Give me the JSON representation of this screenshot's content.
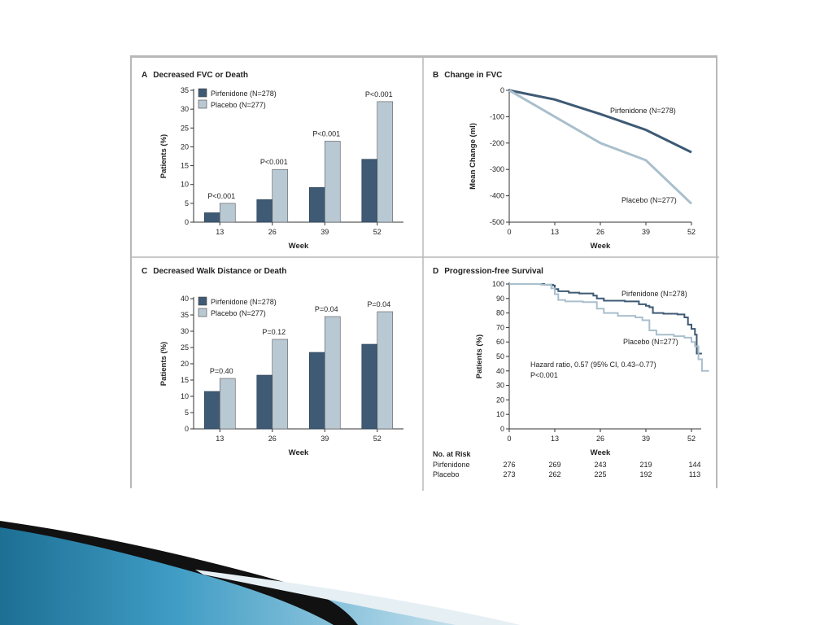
{
  "colors": {
    "pirf": "#3e5a74",
    "placebo": "#b9c9d4",
    "placebo_line": "#a9bfcc",
    "axis": "#333333",
    "frame": "#b8b8b8"
  },
  "chart_data": [
    {
      "letter": "A",
      "title": "Decreased FVC or Death",
      "type": "bar",
      "categories": [
        "13",
        "26",
        "39",
        "52"
      ],
      "series": [
        {
          "name": "Pirfenidone (N=278)",
          "values": [
            2.5,
            6.0,
            9.2,
            16.7
          ]
        },
        {
          "name": "Placebo (N=277)",
          "values": [
            5.0,
            14.0,
            21.5,
            32.0
          ]
        }
      ],
      "pvalues": [
        "P<0.001",
        "P<0.001",
        "P<0.001",
        "P<0.001"
      ],
      "ylim": [
        0,
        35
      ],
      "yticks": [
        0,
        5,
        10,
        15,
        20,
        25,
        30,
        35
      ],
      "xlabel": "Week",
      "ylabel": "Patients (%)",
      "legend": "top-left"
    },
    {
      "letter": "B",
      "title": "Change in FVC",
      "type": "line",
      "x": [
        0,
        13,
        26,
        39,
        52
      ],
      "series": [
        {
          "name": "Pirfenidone (N=278)",
          "values": [
            0,
            -35,
            -90,
            -150,
            -235
          ]
        },
        {
          "name": "Placebo (N=277)",
          "values": [
            0,
            -100,
            -200,
            -265,
            -430
          ]
        }
      ],
      "ylim": [
        -500,
        0
      ],
      "yticks": [
        0,
        -100,
        -200,
        -300,
        -400,
        -500
      ],
      "xticks": [
        0,
        13,
        26,
        39,
        52
      ],
      "xlabel": "Week",
      "ylabel": "Mean Change (ml)"
    },
    {
      "letter": "C",
      "title": "Decreased Walk Distance or Death",
      "type": "bar",
      "categories": [
        "13",
        "26",
        "39",
        "52"
      ],
      "series": [
        {
          "name": "Pirfenidone (N=278)",
          "values": [
            11.5,
            16.5,
            23.5,
            26.0
          ]
        },
        {
          "name": "Placebo (N=277)",
          "values": [
            15.5,
            27.5,
            34.5,
            36.0
          ]
        }
      ],
      "pvalues": [
        "P=0.40",
        "P=0.12",
        "P=0.04",
        "P=0.04"
      ],
      "ylim": [
        0,
        40
      ],
      "yticks": [
        0,
        5,
        10,
        15,
        20,
        25,
        30,
        35,
        40
      ],
      "xlabel": "Week",
      "ylabel": "Patients (%)",
      "legend": "top-left"
    },
    {
      "letter": "D",
      "title": "Progression-free Survival",
      "type": "line",
      "step": true,
      "series": [
        {
          "name": "Pirfenidone (N=278)",
          "points": [
            [
              0,
              100
            ],
            [
              10,
              99.5
            ],
            [
              12.5,
              99
            ],
            [
              13,
              96.5
            ],
            [
              14,
              95
            ],
            [
              17,
              94
            ],
            [
              20,
              93.5
            ],
            [
              24,
              92
            ],
            [
              25,
              90
            ],
            [
              27,
              88.5
            ],
            [
              33,
              88
            ],
            [
              37,
              86
            ],
            [
              39,
              85
            ],
            [
              40,
              84
            ],
            [
              41,
              80
            ],
            [
              44,
              79.5
            ],
            [
              48,
              79
            ],
            [
              50,
              77
            ],
            [
              51,
              72
            ],
            [
              52,
              69
            ],
            [
              53,
              65
            ],
            [
              53.5,
              52
            ],
            [
              55,
              52
            ]
          ]
        },
        {
          "name": "Placebo (N=277)",
          "points": [
            [
              0,
              100
            ],
            [
              9,
              99.5
            ],
            [
              12,
              97
            ],
            [
              13,
              93
            ],
            [
              14,
              89
            ],
            [
              16,
              88
            ],
            [
              21,
              87.5
            ],
            [
              25,
              83
            ],
            [
              27,
              80
            ],
            [
              31,
              78
            ],
            [
              36,
              77
            ],
            [
              38,
              75
            ],
            [
              40,
              68
            ],
            [
              42,
              65
            ],
            [
              47,
              64
            ],
            [
              50,
              63
            ],
            [
              52,
              60
            ],
            [
              53,
              57
            ],
            [
              54,
              48
            ],
            [
              55,
              40
            ],
            [
              57,
              40
            ]
          ]
        }
      ],
      "ylim": [
        0,
        100
      ],
      "yticks": [
        0,
        10,
        20,
        30,
        40,
        50,
        60,
        70,
        80,
        90,
        100
      ],
      "xticks": [
        0,
        13,
        26,
        39,
        52
      ],
      "xlabel": "Week",
      "ylabel": "Patients (%)",
      "annotation": [
        "Hazard ratio, 0.57 (95% CI, 0.43–0.77)",
        "P<0.001"
      ],
      "at_risk": {
        "title": "No. at Risk",
        "rows": [
          {
            "label": "Pirfenidone",
            "values": [
              "276",
              "269",
              "243",
              "219",
              "144"
            ]
          },
          {
            "label": "Placebo",
            "values": [
              "273",
              "262",
              "225",
              "192",
              "113"
            ]
          }
        ]
      }
    }
  ]
}
